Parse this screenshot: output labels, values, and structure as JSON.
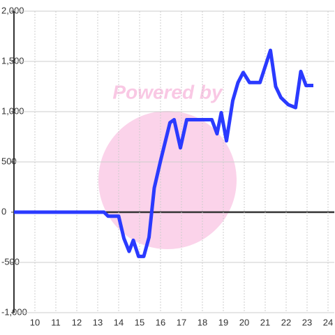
{
  "chart_data": {
    "type": "line",
    "watermark": "Powered by",
    "x": [
      9,
      13.3,
      13.5,
      14.0,
      14.25,
      14.5,
      14.7,
      14.95,
      15.2,
      15.45,
      15.7,
      16.0,
      16.45,
      16.65,
      16.95,
      17.25,
      18.45,
      18.7,
      18.9,
      19.15,
      19.45,
      19.7,
      19.95,
      20.25,
      20.75,
      21.25,
      21.5,
      21.75,
      22.1,
      22.45,
      22.7,
      22.95,
      23.3
    ],
    "series": [
      {
        "color": "#2a3aff",
        "values": [
          0,
          0,
          -40,
          -40,
          -260,
          -390,
          -280,
          -440,
          -440,
          -250,
          240,
          510,
          890,
          920,
          640,
          920,
          920,
          780,
          990,
          710,
          1110,
          1290,
          1390,
          1290,
          1290,
          1610,
          1250,
          1140,
          1070,
          1040,
          1400,
          1260,
          1260
        ]
      }
    ],
    "xlim": [
      9,
      24.3
    ],
    "xticks": [
      10,
      11,
      12,
      13,
      14,
      15,
      16,
      17,
      18,
      19,
      20,
      21,
      22,
      23,
      24
    ],
    "ylim": [
      -1000,
      2000
    ],
    "yticks": [
      {
        "value": -1000,
        "label": "-1,000"
      },
      -500,
      0,
      500,
      {
        "value": 1000,
        "label": "1,000"
      },
      {
        "value": 1500,
        "label": "1,500"
      },
      {
        "value": 2000,
        "label": "2,000"
      }
    ],
    "grid": true
  }
}
